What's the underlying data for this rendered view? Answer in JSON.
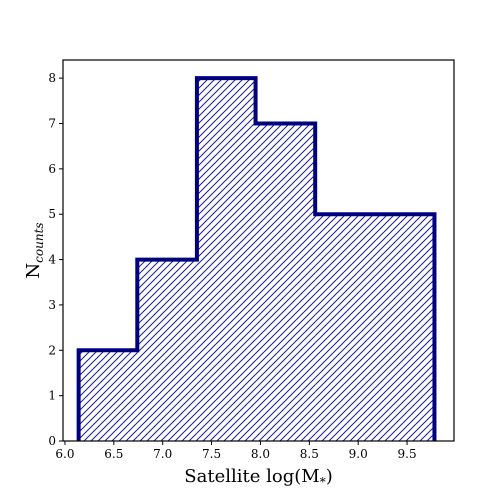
{
  "chart_data": {
    "type": "histogram",
    "title": "",
    "xlabel": "Satellite log(M",
    "xlabel_sub": "*",
    "xlabel_close": ")",
    "ylabel": "N",
    "ylabel_sub": "counts",
    "xlim": [
      5.98,
      9.98
    ],
    "ylim": [
      0,
      8.4
    ],
    "bin_edges": [
      6.14,
      6.74,
      7.35,
      7.95,
      8.56,
      9.78
    ],
    "values": [
      2,
      4,
      8,
      7,
      5
    ],
    "xticks": [
      6.0,
      6.5,
      7.0,
      7.5,
      8.0,
      8.5,
      9.0,
      9.5
    ],
    "xtick_labels": [
      "6.0",
      "6.5",
      "7.0",
      "7.5",
      "8.0",
      "8.5",
      "9.0",
      "9.5"
    ],
    "yticks": [
      0,
      1,
      2,
      3,
      4,
      5,
      6,
      7,
      8
    ],
    "ytick_labels": [
      "0",
      "1",
      "2",
      "3",
      "4",
      "5",
      "6",
      "7",
      "8"
    ],
    "grid": false,
    "colors": {
      "edge": "#00007f",
      "hatch": "#1a1a9a"
    }
  }
}
